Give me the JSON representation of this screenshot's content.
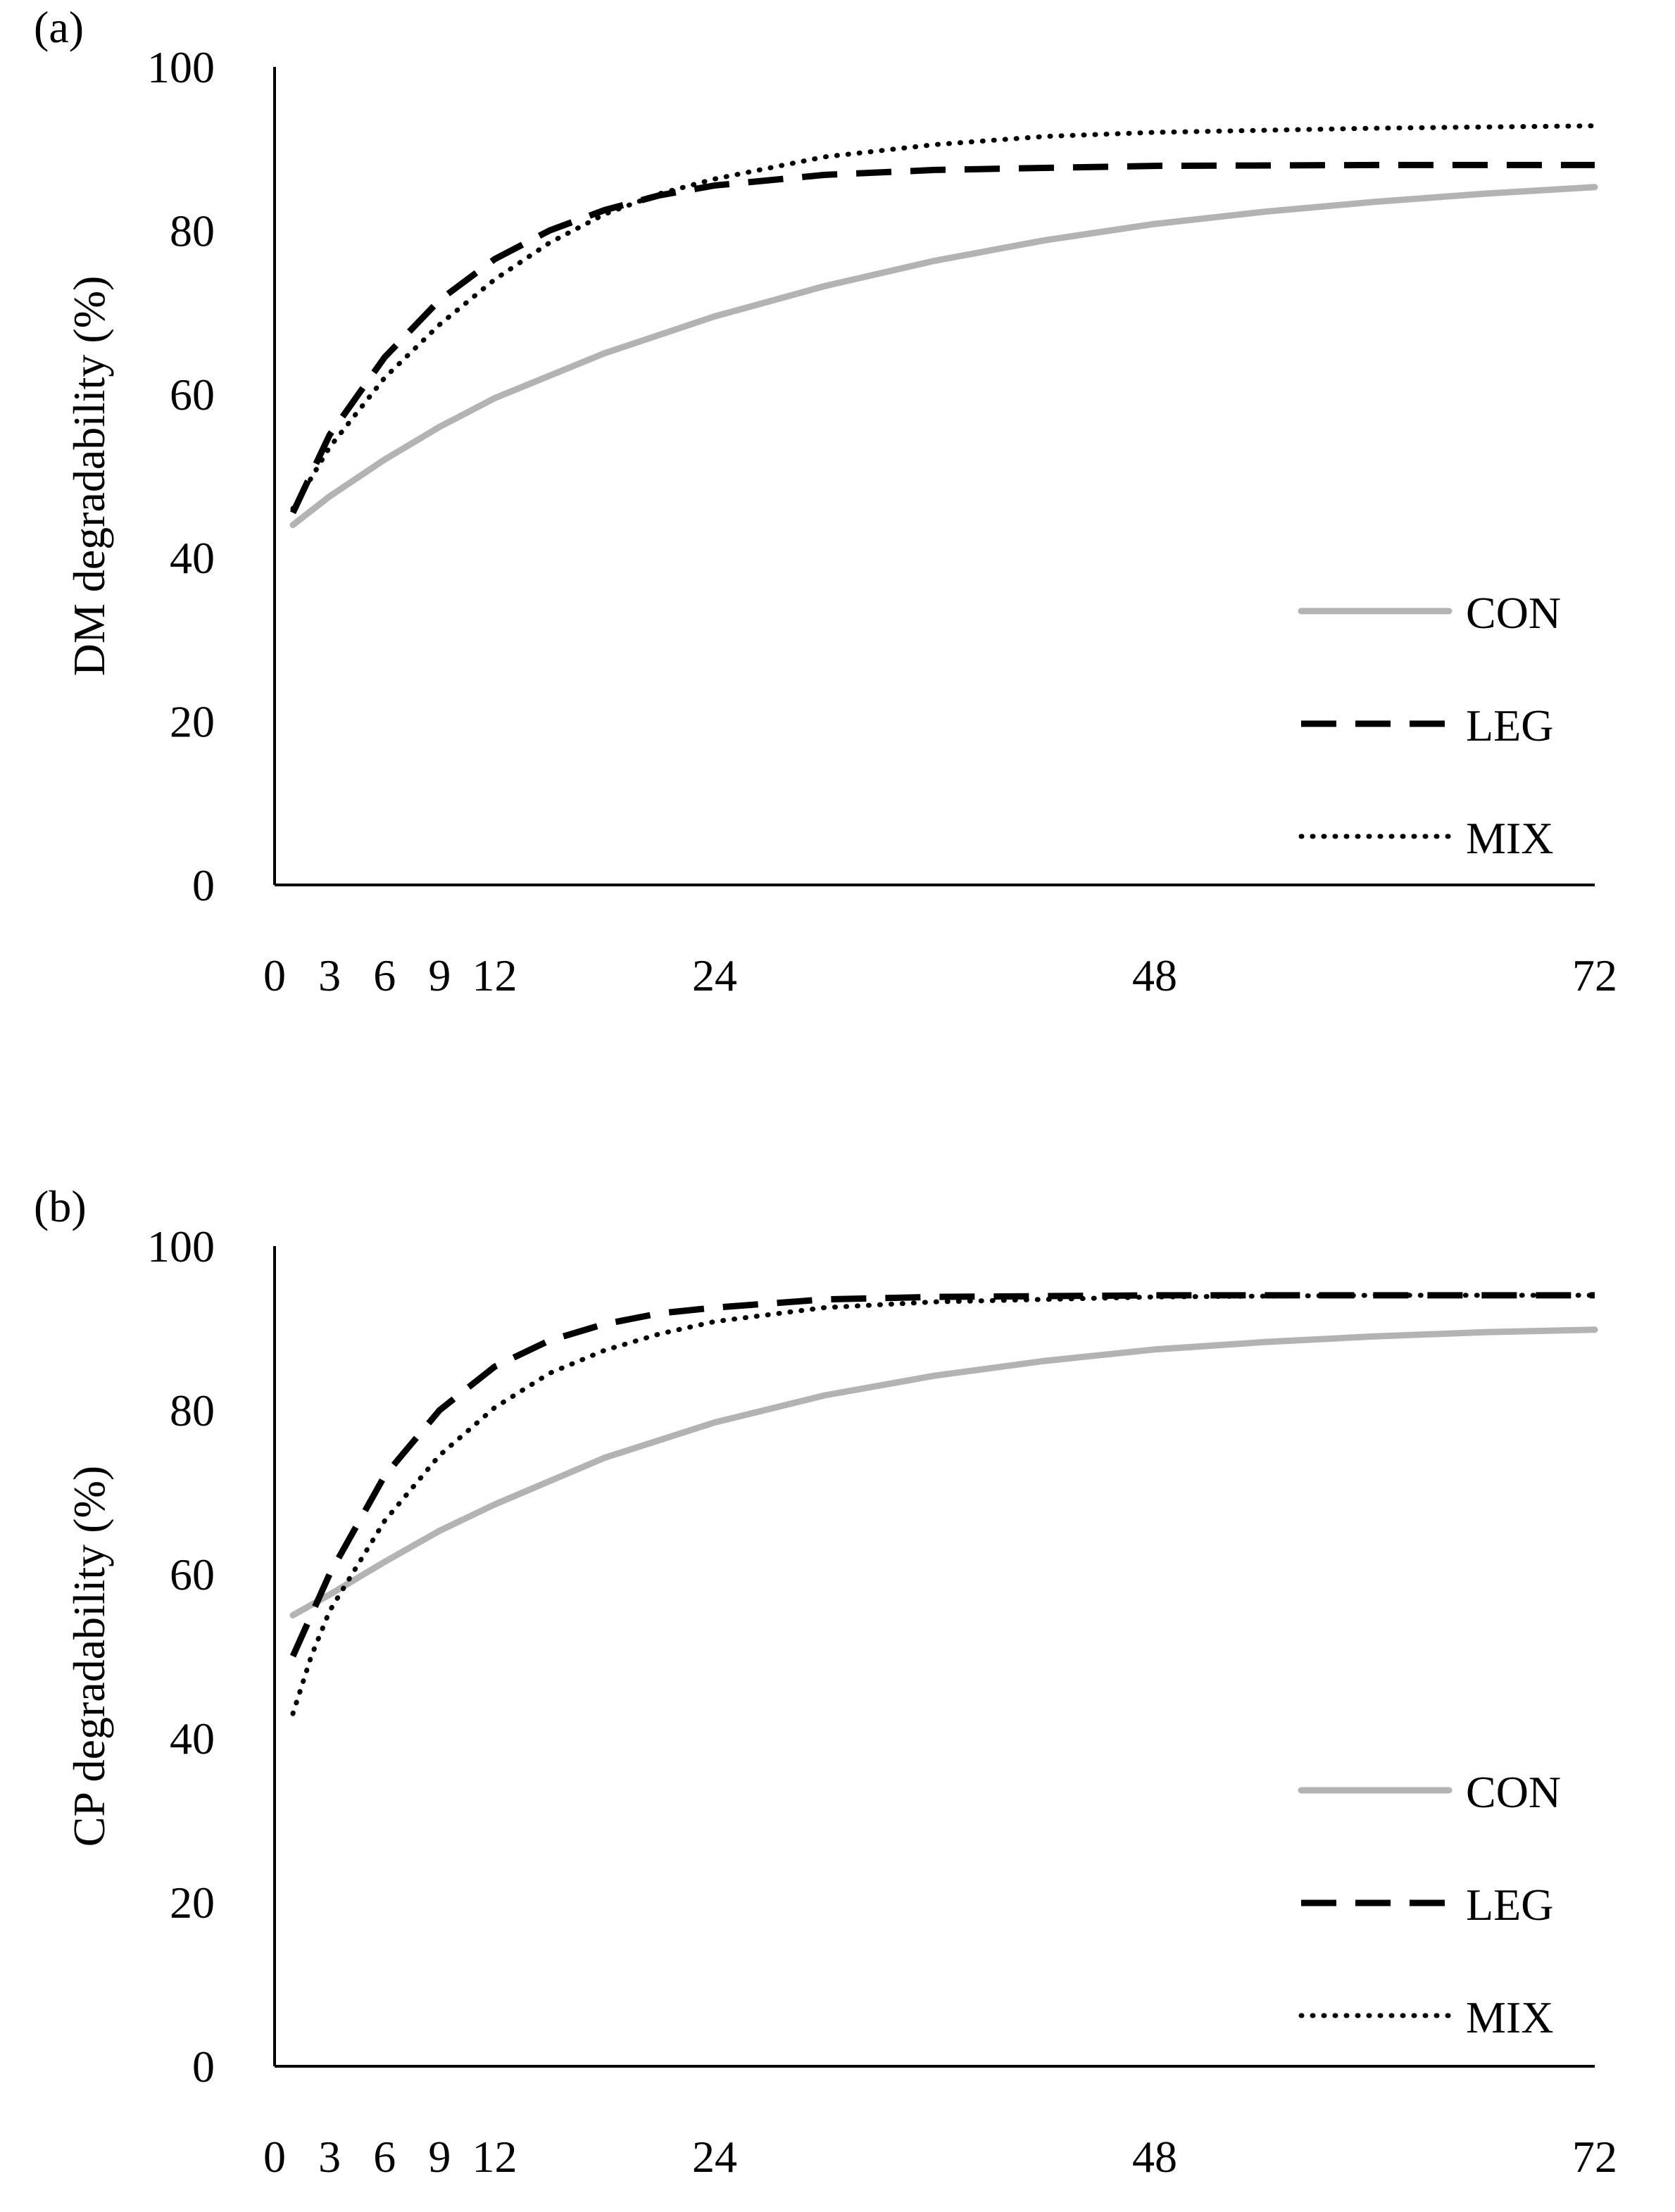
{
  "chart_data": [
    {
      "type": "line",
      "panel_label": "(a)",
      "title": "",
      "xlabel": "",
      "ylabel": "DM degradability  (%)",
      "xlim": [
        0,
        72
      ],
      "ylim": [
        0,
        100
      ],
      "x_ticks": [
        0,
        3,
        6,
        9,
        12,
        24,
        48,
        72
      ],
      "y_ticks": [
        0,
        20,
        40,
        60,
        80,
        100
      ],
      "grid": false,
      "legend_position": "bottom-right",
      "series": [
        {
          "name": "CON",
          "style": "solid",
          "color": "#b3b3b3",
          "x": [
            1,
            3,
            6,
            9,
            12,
            18,
            24,
            30,
            36,
            42,
            48,
            54,
            60,
            66,
            72
          ],
          "y": [
            44.0,
            47.5,
            52.0,
            56.0,
            59.5,
            65.0,
            69.5,
            73.2,
            76.3,
            78.8,
            80.8,
            82.3,
            83.5,
            84.5,
            85.3
          ]
        },
        {
          "name": "LEG",
          "style": "dashed",
          "color": "#000000",
          "x": [
            1,
            3,
            6,
            9,
            12,
            15,
            18,
            21,
            24,
            30,
            36,
            48,
            60,
            72
          ],
          "y": [
            45.5,
            55.0,
            64.5,
            71.5,
            76.5,
            80.0,
            82.5,
            84.3,
            85.5,
            86.8,
            87.4,
            87.9,
            88.0,
            88.0
          ]
        },
        {
          "name": "MIX",
          "style": "dotted",
          "color": "#000000",
          "x": [
            1,
            3,
            6,
            9,
            12,
            15,
            18,
            21,
            24,
            30,
            36,
            42,
            48,
            60,
            72
          ],
          "y": [
            46.0,
            53.5,
            62.0,
            68.5,
            74.0,
            78.5,
            82.0,
            84.5,
            86.3,
            89.0,
            90.5,
            91.5,
            92.0,
            92.5,
            92.8
          ]
        }
      ]
    },
    {
      "type": "line",
      "panel_label": "(b)",
      "title": "",
      "xlabel": "",
      "ylabel": "CP degradability  (%)",
      "xlim": [
        0,
        72
      ],
      "ylim": [
        0,
        100
      ],
      "x_ticks": [
        0,
        3,
        6,
        9,
        12,
        24,
        48,
        72
      ],
      "y_ticks": [
        0,
        20,
        40,
        60,
        80,
        100
      ],
      "grid": false,
      "legend_position": "bottom-right",
      "series": [
        {
          "name": "CON",
          "style": "solid",
          "color": "#b3b3b3",
          "x": [
            1,
            3,
            6,
            9,
            12,
            18,
            24,
            30,
            36,
            42,
            48,
            54,
            60,
            66,
            72
          ],
          "y": [
            55.0,
            57.5,
            61.5,
            65.3,
            68.5,
            74.2,
            78.5,
            81.8,
            84.2,
            86.0,
            87.4,
            88.3,
            89.0,
            89.5,
            89.8
          ]
        },
        {
          "name": "LEG",
          "style": "dashed",
          "color": "#000000",
          "x": [
            1,
            3,
            6,
            9,
            12,
            15,
            18,
            21,
            24,
            30,
            36,
            48,
            60,
            72
          ],
          "y": [
            50.0,
            60.0,
            72.0,
            80.0,
            85.3,
            88.5,
            90.5,
            91.8,
            92.5,
            93.5,
            93.8,
            94.0,
            94.0,
            94.0
          ]
        },
        {
          "name": "MIX",
          "style": "dotted",
          "color": "#000000",
          "x": [
            1,
            2,
            3,
            4.5,
            6,
            9,
            12,
            15,
            18,
            21,
            24,
            30,
            36,
            48,
            60,
            72
          ],
          "y": [
            43.0,
            50.0,
            55.5,
            61.0,
            66.5,
            74.5,
            80.3,
            84.5,
            87.3,
            89.3,
            90.8,
            92.5,
            93.2,
            93.8,
            94.0,
            94.0
          ]
        }
      ]
    }
  ]
}
